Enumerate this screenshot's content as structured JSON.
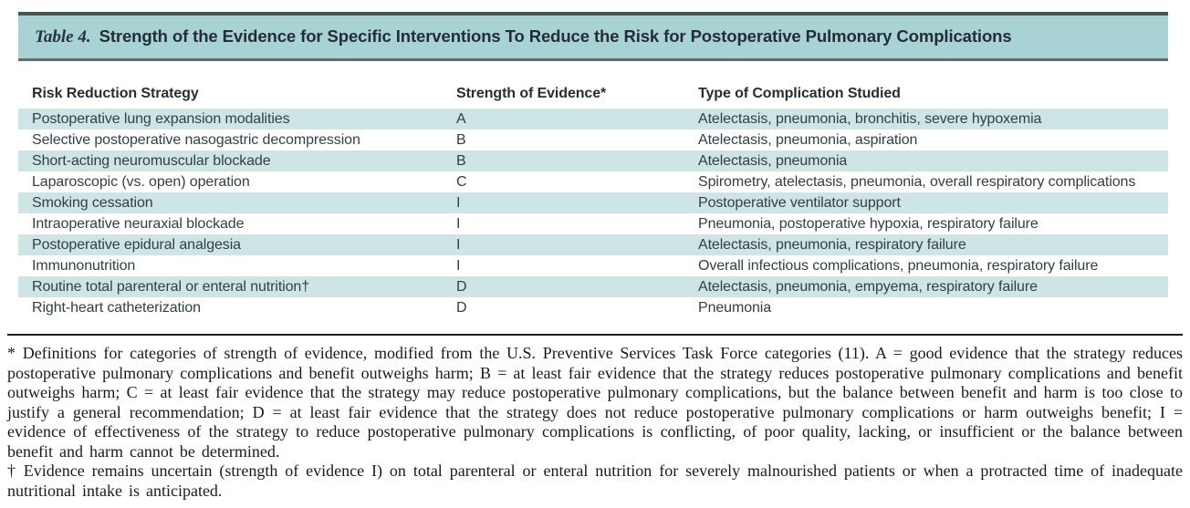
{
  "table": {
    "caption_label": "Table 4.",
    "caption_title": "Strength of the Evidence for Specific Interventions To Reduce the Risk for Postoperative Pulmonary Complications",
    "columns": [
      "Risk Reduction Strategy",
      "Strength of Evidence*",
      "Type of Complication Studied"
    ],
    "rows": [
      {
        "strategy": "Postoperative lung expansion modalities",
        "evidence": "A",
        "complication": "Atelectasis, pneumonia, bronchitis, severe hypoxemia"
      },
      {
        "strategy": "Selective postoperative nasogastric decompression",
        "evidence": "B",
        "complication": "Atelectasis, pneumonia, aspiration"
      },
      {
        "strategy": "Short-acting neuromuscular blockade",
        "evidence": "B",
        "complication": "Atelectasis, pneumonia"
      },
      {
        "strategy": "Laparoscopic (vs. open) operation",
        "evidence": "C",
        "complication": "Spirometry, atelectasis, pneumonia, overall respiratory complications"
      },
      {
        "strategy": "Smoking cessation",
        "evidence": "I",
        "complication": "Postoperative ventilator support"
      },
      {
        "strategy": "Intraoperative neuraxial blockade",
        "evidence": "I",
        "complication": "Pneumonia, postoperative hypoxia, respiratory failure"
      },
      {
        "strategy": "Postoperative epidural analgesia",
        "evidence": "I",
        "complication": "Atelectasis, pneumonia, respiratory failure"
      },
      {
        "strategy": "Immunonutrition",
        "evidence": "I",
        "complication": "Overall infectious complications, pneumonia, respiratory failure"
      },
      {
        "strategy": "Routine total parenteral or enteral nutrition†",
        "evidence": "D",
        "complication": "Atelectasis, pneumonia, empyema, respiratory failure"
      },
      {
        "strategy": "Right-heart catheterization",
        "evidence": "D",
        "complication": "Pneumonia"
      }
    ]
  },
  "footnotes": {
    "asterisk": "* Definitions for categories of strength of evidence, modified from the U.S. Preventive Services Task Force categories (11). A = good evidence that the strategy reduces postoperative pulmonary complications and benefit outweighs harm; B = at least fair evidence that the strategy reduces postoperative pulmonary complications and benefit outweighs harm; C = at least fair evidence that the strategy may reduce postoperative pulmonary complications, but the balance between benefit and harm is too close to justify a general recommendation; D = at least fair evidence that the strategy does not reduce postoperative pulmonary complications or harm outweighs benefit; I = evidence of effectiveness of the strategy to reduce postoperative pulmonary complications is conflicting, of poor quality, lacking, or insufficient or the balance between benefit and harm cannot be determined.",
    "dagger": "† Evidence remains uncertain (strength of evidence I) on total parenteral or enteral nutrition for severely malnourished patients or when a protracted time of inadequate nutritional intake is anticipated."
  },
  "colors": {
    "caption_band_teal": "#a8d2d4",
    "row_stripe_teal": "#cee5e6",
    "caption_border_top": "#47555b",
    "caption_border_bottom": "#5f6e74",
    "body_text": "#333e44",
    "footnote_text": "#1a1a1a",
    "divider": "#1c1c1c"
  }
}
